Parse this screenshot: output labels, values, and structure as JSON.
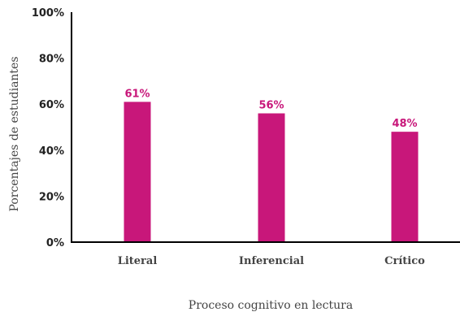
{
  "chart_data": {
    "type": "bar",
    "categories": [
      "Literal",
      "Inferencial",
      "Crítico"
    ],
    "values": [
      61,
      56,
      48
    ],
    "data_labels": [
      "61%",
      "56%",
      "48%"
    ],
    "xlabel": "Proceso cognitivo en lectura",
    "ylabel": "Porcentajes de estudiantes",
    "ylim": [
      0,
      100
    ],
    "yticks": [
      0,
      20,
      40,
      60,
      80,
      100
    ],
    "ytick_labels": [
      "0%",
      "20%",
      "40%",
      "60%",
      "80%",
      "100%"
    ],
    "grid": false,
    "legend": "none",
    "bar_color": "#C8177A",
    "label_color": "#C8177A",
    "axis_color": "#000000"
  }
}
